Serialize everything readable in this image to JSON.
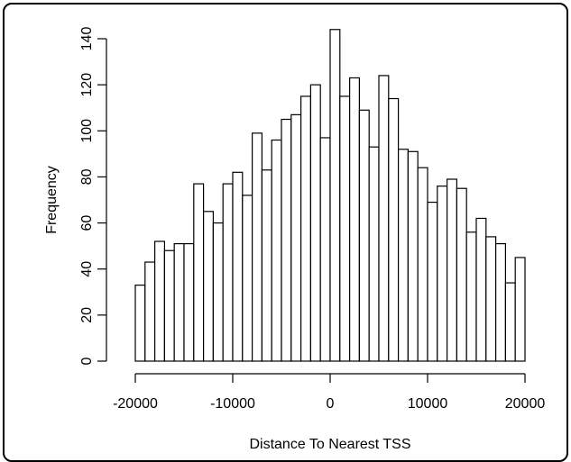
{
  "chart_data": {
    "type": "bar",
    "title": "",
    "xlabel": "Distance To Nearest TSS",
    "ylabel": "Frequency",
    "bin_width": 1000,
    "x_start": -20000,
    "xlim": [
      -20000,
      20000
    ],
    "ylim": [
      0,
      140
    ],
    "x_ticks": [
      -20000,
      -10000,
      0,
      10000,
      20000
    ],
    "y_ticks": [
      0,
      20,
      40,
      60,
      80,
      100,
      120,
      140
    ],
    "x_tick_labels": [
      "-20000",
      "-10000",
      "0",
      "10000",
      "20000"
    ],
    "y_tick_labels": [
      "0",
      "20",
      "40",
      "60",
      "80",
      "100",
      "120",
      "140"
    ],
    "values": [
      33,
      43,
      52,
      48,
      51,
      51,
      77,
      65,
      60,
      77,
      82,
      72,
      99,
      83,
      96,
      105,
      107,
      115,
      120,
      97,
      144,
      115,
      123,
      109,
      93,
      124,
      114,
      92,
      91,
      84,
      69,
      76,
      79,
      75,
      56,
      62,
      54,
      51,
      34,
      45
    ],
    "grid": false,
    "colors": {
      "bar_fill": "#ffffff",
      "bar_stroke": "#000000"
    }
  }
}
